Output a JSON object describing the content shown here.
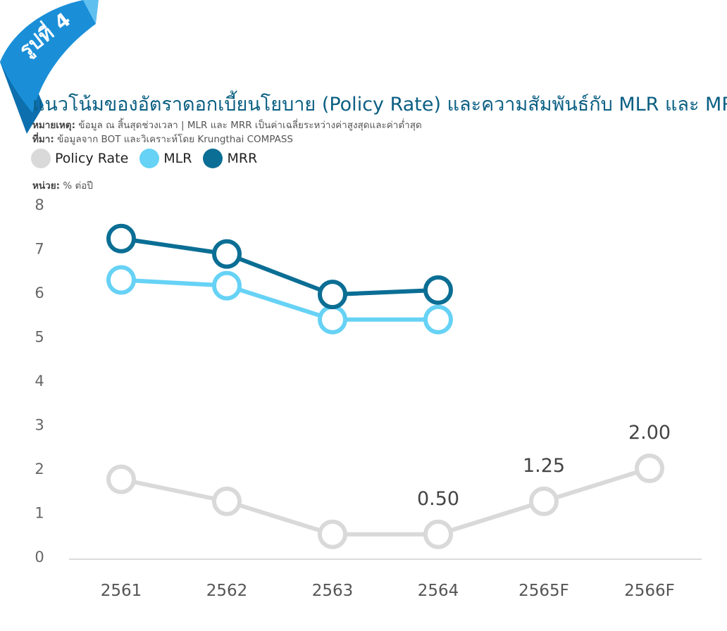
{
  "badge": {
    "text": "รูปที่ 4",
    "color": "#1a8fd8"
  },
  "title": "แนวโน้มของอัตราดอกเบี้ยนโยบาย (Policy Rate) และความสัมพันธ์กับ MLR และ MRR",
  "note": {
    "label": "หมายเหตุ:",
    "text": "ข้อมูล ณ สิ้นสุดช่วงเวลา | MLR และ MRR เป็นค่าเฉลี่ยระหว่างค่าสูงสุดและค่าต่ำสุด"
  },
  "source": {
    "label": "ที่มา:",
    "text": "ข้อมูลจาก BOT และวิเคราะห์โดย Krungthai COMPASS"
  },
  "unit": {
    "label": "หน่วย:",
    "text": "% ต่อปี"
  },
  "chart_data": {
    "type": "line",
    "categories": [
      "2561",
      "2562",
      "2563",
      "2564",
      "2565F",
      "2566F"
    ],
    "yticks": [
      "0",
      "1",
      "2",
      "3",
      "4",
      "5",
      "6",
      "7",
      "8"
    ],
    "ylim": [
      0,
      8
    ],
    "grid": false,
    "legend_position": "top-left",
    "series": [
      {
        "name": "Policy Rate",
        "color": "#d9d9d9",
        "values": [
          1.75,
          1.25,
          0.5,
          0.5,
          1.25,
          2.0
        ],
        "labels": [
          "",
          "",
          "",
          "0.50",
          "1.25",
          "2.00"
        ]
      },
      {
        "name": "MLR",
        "color": "#66d2f5",
        "values": [
          6.28,
          6.15,
          5.38,
          5.38,
          null,
          null
        ]
      },
      {
        "name": "MRR",
        "color": "#0b6e94",
        "values": [
          7.22,
          6.87,
          5.95,
          6.05,
          null,
          null
        ]
      }
    ]
  }
}
